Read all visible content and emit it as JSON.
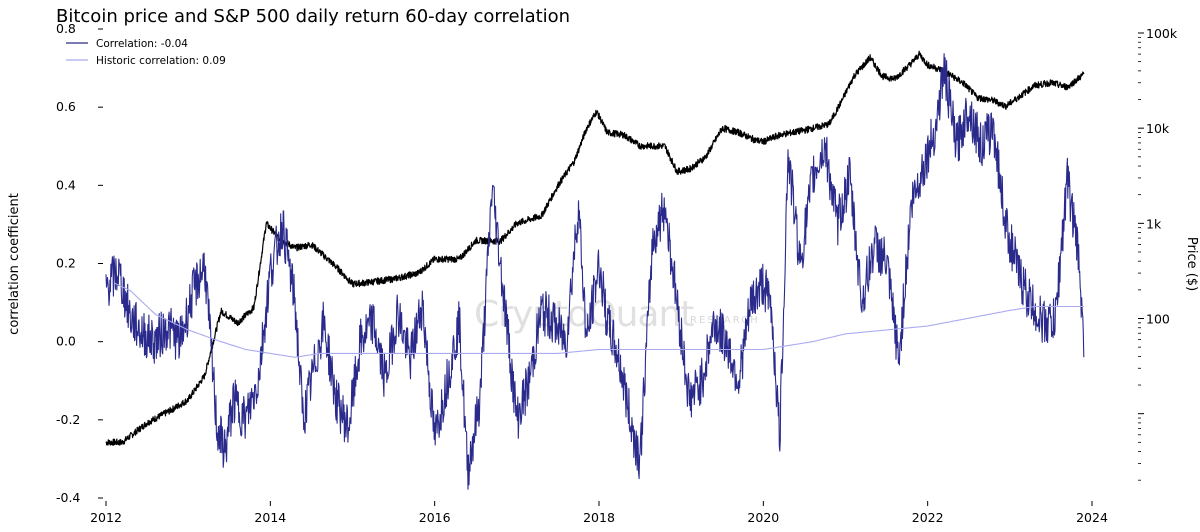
{
  "chart_data": {
    "type": "line",
    "title": "Bitcoin price and S&P 500 daily return 60-day correlation",
    "xlabel": "",
    "ylabel": "correlation coefficient",
    "y2label": "Price ($)",
    "xlim": [
      2012,
      2024
    ],
    "ylim": [
      -0.4,
      0.8
    ],
    "y2lim_log": [
      1.3,
      100000
    ],
    "y2scale": "log",
    "x_ticks": [
      2012,
      2014,
      2016,
      2018,
      2020,
      2022,
      2024
    ],
    "x_tick_labels": [
      "2012",
      "2014",
      "2016",
      "2018",
      "2020",
      "2022",
      "2024"
    ],
    "y_ticks": [
      -0.4,
      -0.2,
      0.0,
      0.2,
      0.4,
      0.6,
      0.8
    ],
    "y_tick_labels": [
      "-0.4",
      "-0.2",
      "0.0",
      "0.2",
      "0.4",
      "0.6",
      "0.8"
    ],
    "y2_ticks": [
      100,
      1000,
      10000,
      100000
    ],
    "y2_tick_labels": [
      "100",
      "1k",
      "10k",
      "100k"
    ],
    "grid": false,
    "legend": "top-left",
    "watermark": "CryptoQuant",
    "watermark_sub": "RESEARCH",
    "series": [
      {
        "name": "Correlation: -0.04",
        "axis": "left",
        "color": "#2a2a8c",
        "x": [
          2012.0,
          2012.15,
          2012.3,
          2012.45,
          2012.6,
          2012.75,
          2012.9,
          2013.05,
          2013.2,
          2013.35,
          2013.45,
          2013.55,
          2013.7,
          2013.85,
          2014.0,
          2014.15,
          2014.3,
          2014.4,
          2014.5,
          2014.65,
          2014.8,
          2014.95,
          2015.1,
          2015.25,
          2015.4,
          2015.55,
          2015.7,
          2015.85,
          2016.0,
          2016.15,
          2016.3,
          2016.4,
          2016.55,
          2016.7,
          2016.85,
          2017.0,
          2017.15,
          2017.3,
          2017.45,
          2017.6,
          2017.75,
          2017.85,
          2018.0,
          2018.1,
          2018.25,
          2018.4,
          2018.5,
          2018.65,
          2018.8,
          2018.95,
          2019.1,
          2019.25,
          2019.4,
          2019.55,
          2019.7,
          2019.85,
          2020.0,
          2020.1,
          2020.2,
          2020.3,
          2020.45,
          2020.6,
          2020.75,
          2020.9,
          2021.05,
          2021.2,
          2021.35,
          2021.5,
          2021.65,
          2021.8,
          2021.95,
          2022.1,
          2022.2,
          2022.35,
          2022.5,
          2022.65,
          2022.8,
          2022.95,
          2023.1,
          2023.25,
          2023.4,
          2023.55,
          2023.7,
          2023.85,
          2023.9
        ],
        "values": [
          0.14,
          0.18,
          0.06,
          0.02,
          0.0,
          0.04,
          0.0,
          0.12,
          0.2,
          -0.22,
          -0.28,
          -0.15,
          -0.2,
          -0.1,
          0.18,
          0.3,
          0.1,
          -0.2,
          -0.1,
          0.05,
          -0.15,
          -0.22,
          0.0,
          0.05,
          -0.1,
          0.08,
          -0.05,
          0.1,
          -0.25,
          -0.1,
          0.05,
          -0.33,
          -0.15,
          0.4,
          0.1,
          -0.2,
          -0.1,
          0.08,
          0.05,
          0.0,
          0.35,
          0.0,
          0.2,
          0.05,
          -0.05,
          -0.22,
          -0.3,
          0.25,
          0.35,
          0.1,
          -0.15,
          -0.1,
          0.05,
          0.0,
          -0.1,
          0.1,
          0.15,
          0.08,
          -0.25,
          0.48,
          0.2,
          0.42,
          0.5,
          0.3,
          0.42,
          0.1,
          0.25,
          0.2,
          -0.05,
          0.35,
          0.45,
          0.55,
          0.7,
          0.5,
          0.6,
          0.5,
          0.55,
          0.3,
          0.18,
          0.1,
          0.05,
          0.05,
          0.42,
          0.2,
          -0.04
        ]
      },
      {
        "name": "Historic correlation: 0.09",
        "axis": "left",
        "color": "#aaaaf0",
        "x": [
          2012.1,
          2012.3,
          2012.6,
          2013.0,
          2013.4,
          2013.7,
          2014.0,
          2014.3,
          2014.6,
          2015.0,
          2015.5,
          2016.0,
          2016.5,
          2017.0,
          2017.5,
          2018.0,
          2018.5,
          2019.0,
          2019.5,
          2020.0,
          2020.3,
          2020.6,
          2021.0,
          2021.5,
          2022.0,
          2022.5,
          2023.0,
          2023.3,
          2023.6,
          2023.9
        ],
        "values": [
          0.15,
          0.13,
          0.07,
          0.03,
          0.0,
          -0.02,
          -0.03,
          -0.04,
          -0.03,
          -0.03,
          -0.03,
          -0.03,
          -0.03,
          -0.03,
          -0.03,
          -0.02,
          -0.02,
          -0.02,
          -0.02,
          -0.02,
          -0.01,
          0.0,
          0.02,
          0.03,
          0.04,
          0.06,
          0.08,
          0.09,
          0.09,
          0.09
        ]
      },
      {
        "name": "Bitcoin price",
        "axis": "right",
        "color": "#000000",
        "x": [
          2012.0,
          2012.2,
          2012.5,
          2012.8,
          2013.0,
          2013.2,
          2013.4,
          2013.6,
          2013.8,
          2013.95,
          2014.1,
          2014.3,
          2014.5,
          2014.8,
          2015.0,
          2015.2,
          2015.5,
          2015.8,
          2016.0,
          2016.3,
          2016.5,
          2016.8,
          2017.0,
          2017.3,
          2017.5,
          2017.7,
          2017.85,
          2017.97,
          2018.1,
          2018.3,
          2018.5,
          2018.8,
          2018.95,
          2019.1,
          2019.3,
          2019.5,
          2019.7,
          2019.9,
          2020.0,
          2020.2,
          2020.5,
          2020.8,
          2020.95,
          2021.1,
          2021.3,
          2021.45,
          2021.6,
          2021.8,
          2021.9,
          2022.0,
          2022.2,
          2022.45,
          2022.6,
          2022.8,
          2022.95,
          2023.1,
          2023.3,
          2023.5,
          2023.7,
          2023.9
        ],
        "values": [
          5,
          5,
          8,
          11,
          14,
          25,
          120,
          90,
          130,
          1000,
          700,
          550,
          600,
          350,
          230,
          240,
          260,
          300,
          420,
          420,
          660,
          650,
          1000,
          1200,
          2500,
          4500,
          10000,
          15000,
          9000,
          8500,
          6500,
          6500,
          3500,
          3700,
          5000,
          10000,
          9000,
          7500,
          7200,
          8500,
          9500,
          11000,
          19000,
          35000,
          55000,
          35000,
          33000,
          48000,
          60000,
          46000,
          40000,
          29000,
          21000,
          19500,
          17000,
          21000,
          28000,
          30000,
          27000,
          37000
        ]
      }
    ]
  }
}
